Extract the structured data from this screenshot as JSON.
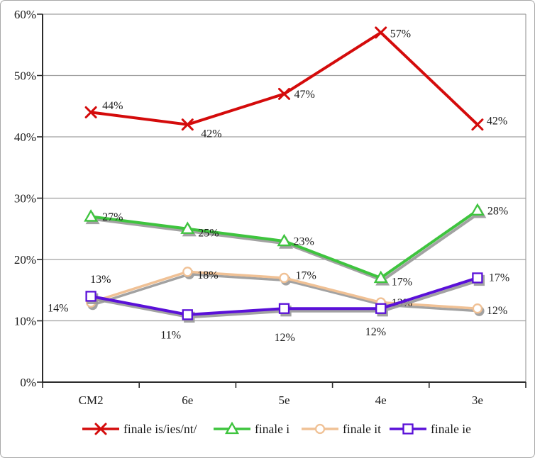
{
  "figure": {
    "kind": "excel-style line chart",
    "background": "#ffffff",
    "border_color": "#a8a8a8"
  },
  "style": {
    "grid_color": "#a0a0a0",
    "axis_color": "#2b2b2b",
    "text_color": "#1a1a1a",
    "shadow_color": "#999999",
    "marker_fill": "#ffffff"
  },
  "chart_data": {
    "type": "line",
    "title": "",
    "xlabel": "",
    "ylabel": "",
    "categories": [
      "CM2",
      "6e",
      "5e",
      "4e",
      "3e"
    ],
    "series": [
      {
        "name": "finale is/ies/nt/",
        "color": "#d40b0b",
        "marker": "x-star",
        "shadow": false,
        "line_width": 4,
        "values": [
          44,
          42,
          47,
          57,
          42
        ],
        "labels": [
          "44%",
          "42%",
          "47%",
          "57%",
          "42%"
        ],
        "label_offsets": [
          [
            16,
            -10
          ],
          [
            19,
            12
          ],
          [
            14,
            0
          ],
          [
            13,
            1
          ],
          [
            13,
            -6
          ]
        ]
      },
      {
        "name": "finale i",
        "color": "#3ec43e",
        "marker": "triangle",
        "shadow": true,
        "line_width": 4,
        "values": [
          27,
          25,
          23,
          17,
          28
        ],
        "labels": [
          "27%",
          "25%",
          "23%",
          "17%",
          "28%"
        ],
        "label_offsets": [
          [
            16,
            0
          ],
          [
            15,
            5
          ],
          [
            13,
            0
          ],
          [
            15,
            5
          ],
          [
            14,
            0
          ]
        ]
      },
      {
        "name": "finale it",
        "color": "#f0c195",
        "marker": "circle",
        "shadow": true,
        "line_width": 3.5,
        "values": [
          13,
          18,
          17,
          13,
          12
        ],
        "labels": [
          "13%",
          "18%",
          "17%",
          "13%",
          "12%"
        ],
        "label_offsets": [
          [
            -1,
            -33
          ],
          [
            14,
            4
          ],
          [
            16,
            -4
          ],
          [
            15,
            0
          ],
          [
            13,
            2
          ]
        ]
      },
      {
        "name": "finale ie",
        "color": "#5a10d8",
        "marker": "square",
        "shadow": true,
        "line_width": 4,
        "values": [
          14,
          11,
          12,
          12,
          17
        ],
        "labels": [
          "14%",
          "11%",
          "12%",
          "12%",
          "17%"
        ],
        "label_offsets": [
          [
            -61,
            16
          ],
          [
            -38,
            28
          ],
          [
            -14,
            40
          ],
          [
            -22,
            32
          ],
          [
            16,
            -1
          ]
        ]
      }
    ],
    "y_axis": {
      "min": 0,
      "max": 60,
      "step": 10,
      "tick_labels": [
        "0%",
        "10%",
        "20%",
        "30%",
        "40%",
        "50%",
        "60%"
      ]
    },
    "x_axis": {
      "tick_labels": [
        "CM2",
        "6e",
        "5e",
        "4e",
        "3e"
      ]
    },
    "grid": true,
    "legend_position": "bottom"
  }
}
